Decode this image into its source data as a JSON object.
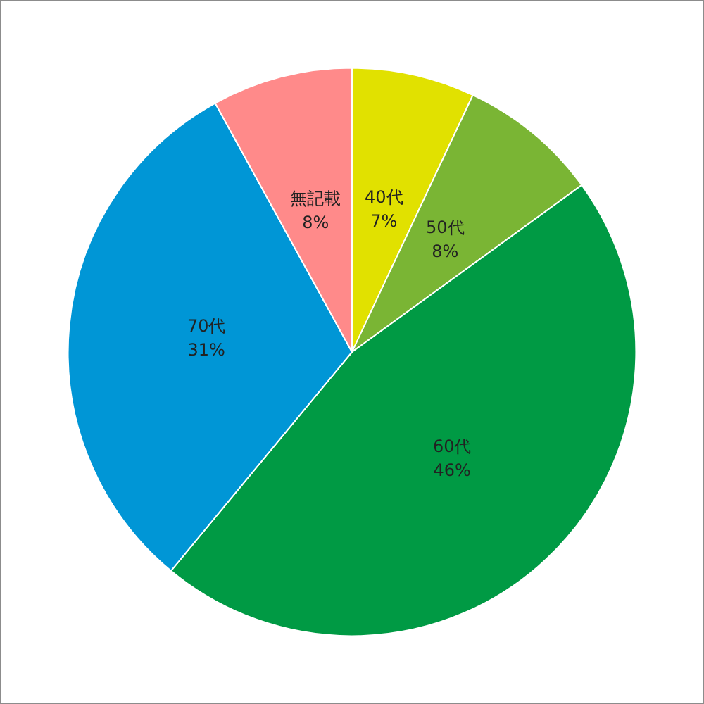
{
  "chart_data": {
    "type": "pie",
    "categories": [
      "40代",
      "50代",
      "60代",
      "70代",
      "無記載"
    ],
    "values": [
      7,
      8,
      46,
      31,
      8
    ],
    "value_labels": [
      "7%",
      "8%",
      "46%",
      "31%",
      "8%"
    ],
    "colors": [
      "#e1e100",
      "#7ab534",
      "#009a44",
      "#0096d6",
      "#ff8a8a"
    ],
    "legend": false
  }
}
